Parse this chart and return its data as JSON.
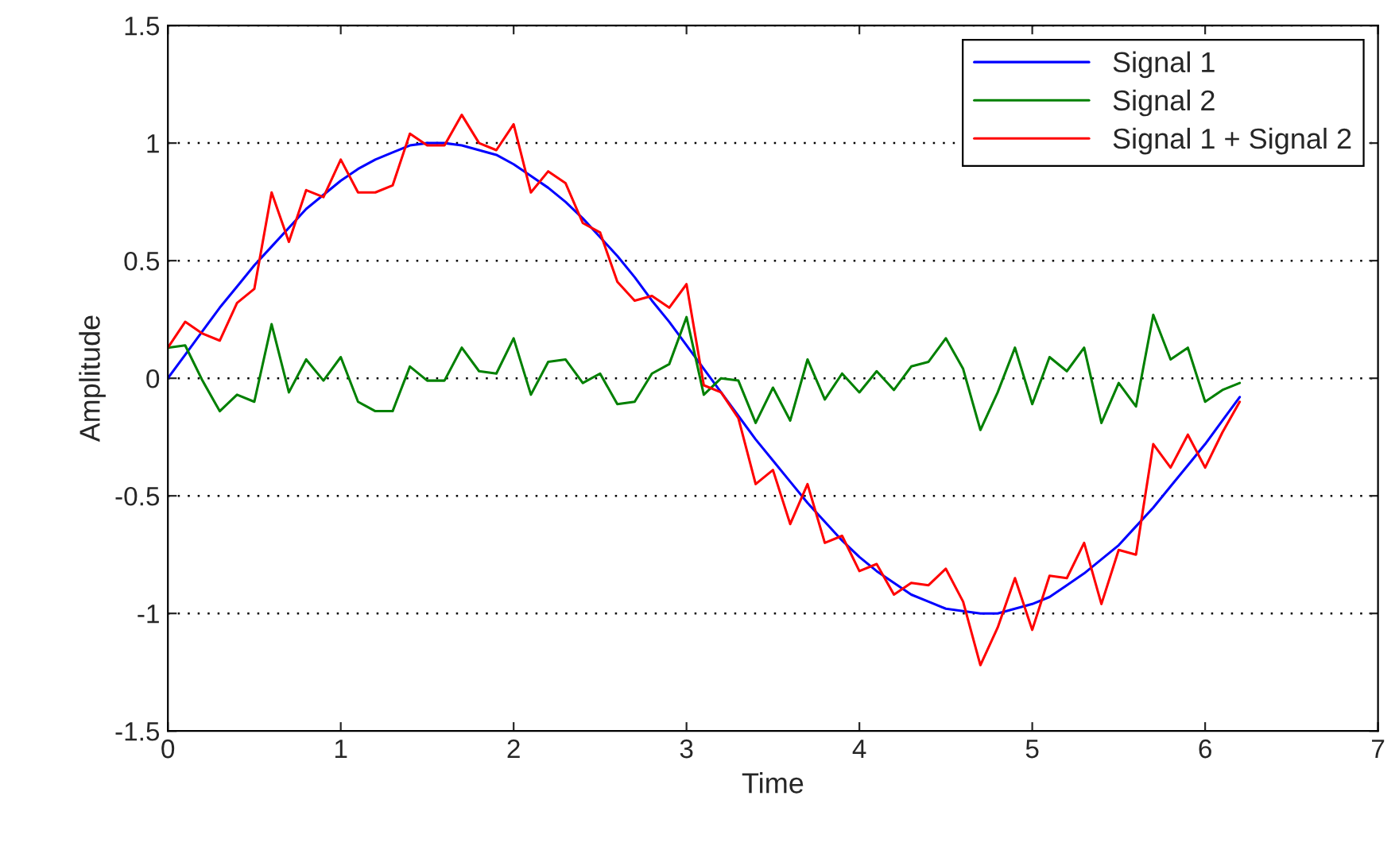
{
  "chart_data": {
    "type": "line",
    "xlabel": "Time",
    "ylabel": "Amplitude",
    "x": [
      0,
      0.1,
      0.2,
      0.3,
      0.4,
      0.5,
      0.6,
      0.7,
      0.8,
      0.9,
      1.0,
      1.1,
      1.2,
      1.3,
      1.4,
      1.5,
      1.6,
      1.7,
      1.8,
      1.9,
      2.0,
      2.1,
      2.2,
      2.3,
      2.4,
      2.5,
      2.6,
      2.7,
      2.8,
      2.9,
      3.0,
      3.1,
      3.2,
      3.3,
      3.4,
      3.5,
      3.6,
      3.7,
      3.8,
      3.9,
      4.0,
      4.1,
      4.2,
      4.3,
      4.4,
      4.5,
      4.6,
      4.7,
      4.8,
      4.9,
      5.0,
      5.1,
      5.2,
      5.3,
      5.4,
      5.5,
      5.6,
      5.7,
      5.8,
      5.9,
      6.0,
      6.1,
      6.2
    ],
    "series": [
      {
        "name": "Signal 1",
        "color": "#0000ff",
        "values": [
          0,
          0.1,
          0.2,
          0.3,
          0.39,
          0.48,
          0.56,
          0.64,
          0.72,
          0.78,
          0.84,
          0.89,
          0.93,
          0.96,
          0.99,
          1.0,
          1.0,
          0.99,
          0.97,
          0.95,
          0.91,
          0.86,
          0.81,
          0.75,
          0.68,
          0.6,
          0.52,
          0.43,
          0.33,
          0.24,
          0.14,
          0.04,
          -0.06,
          -0.16,
          -0.26,
          -0.35,
          -0.44,
          -0.53,
          -0.61,
          -0.69,
          -0.76,
          -0.82,
          -0.87,
          -0.92,
          -0.95,
          -0.98,
          -0.99,
          -1.0,
          -1.0,
          -0.98,
          -0.96,
          -0.93,
          -0.88,
          -0.83,
          -0.77,
          -0.71,
          -0.63,
          -0.55,
          -0.46,
          -0.37,
          -0.28,
          -0.18,
          -0.08
        ]
      },
      {
        "name": "Signal 2",
        "color": "#008000",
        "values": [
          0.13,
          0.14,
          -0.01,
          -0.14,
          -0.07,
          -0.1,
          0.23,
          -0.06,
          0.08,
          -0.01,
          0.09,
          -0.1,
          -0.14,
          -0.14,
          0.05,
          -0.01,
          -0.01,
          0.13,
          0.03,
          0.02,
          0.17,
          -0.07,
          0.07,
          0.08,
          -0.02,
          0.02,
          -0.11,
          -0.1,
          0.02,
          0.06,
          0.26,
          -0.07,
          0.0,
          -0.01,
          -0.19,
          -0.04,
          -0.18,
          0.08,
          -0.09,
          0.02,
          -0.06,
          0.03,
          -0.05,
          0.05,
          0.07,
          0.17,
          0.04,
          -0.22,
          -0.06,
          0.13,
          -0.11,
          0.09,
          0.03,
          0.13,
          -0.19,
          -0.02,
          -0.12,
          0.27,
          0.08,
          0.13,
          -0.1,
          -0.05,
          -0.02
        ]
      },
      {
        "name": "Signal 1 + Signal 2",
        "color": "#ff0000",
        "values": [
          0.13,
          0.24,
          0.19,
          0.16,
          0.32,
          0.38,
          0.79,
          0.58,
          0.8,
          0.77,
          0.93,
          0.79,
          0.79,
          0.82,
          1.04,
          0.99,
          0.99,
          1.12,
          1.0,
          0.97,
          1.08,
          0.79,
          0.88,
          0.83,
          0.66,
          0.62,
          0.41,
          0.33,
          0.35,
          0.3,
          0.4,
          -0.03,
          -0.06,
          -0.17,
          -0.45,
          -0.39,
          -0.62,
          -0.45,
          -0.7,
          -0.67,
          -0.82,
          -0.79,
          -0.92,
          -0.87,
          -0.88,
          -0.81,
          -0.95,
          -1.22,
          -1.06,
          -0.85,
          -1.07,
          -0.84,
          -0.85,
          -0.7,
          -0.96,
          -0.73,
          -0.75,
          -0.28,
          -0.38,
          -0.24,
          -0.38,
          -0.23,
          -0.1
        ]
      }
    ],
    "xlim": [
      0,
      7
    ],
    "xticks": [
      0,
      1,
      2,
      3,
      4,
      5,
      6,
      7
    ],
    "ylim": [
      -1.5,
      1.5
    ],
    "yticks": [
      -1.5,
      -1,
      -0.5,
      0,
      0.5,
      1,
      1.5
    ],
    "grid": "y",
    "legend": "top right",
    "line_style": "solid",
    "marker": "none"
  }
}
